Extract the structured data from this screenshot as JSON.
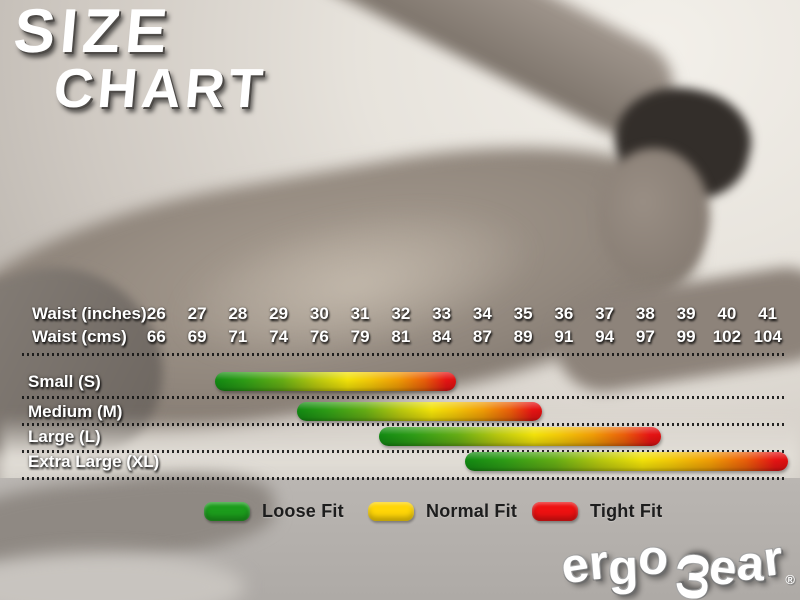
{
  "header": {
    "title_line1": "SIZE",
    "title_line2": "CHART"
  },
  "size_table": {
    "inches_label": "Waist (inches)",
    "cms_label": "Waist (cms)",
    "inches": [
      "26",
      "27",
      "28",
      "29",
      "30",
      "31",
      "32",
      "33",
      "34",
      "35",
      "36",
      "37",
      "38",
      "39",
      "40",
      "41"
    ],
    "cms": [
      "66",
      "69",
      "71",
      "74",
      "76",
      "79",
      "81",
      "84",
      "87",
      "89",
      "91",
      "94",
      "97",
      "99",
      "102",
      "104"
    ]
  },
  "chart_data": {
    "type": "bar",
    "subtype": "horizontal-range-bars",
    "title": "SIZE CHART",
    "xlabel": "Waist (inches)",
    "x_axis": {
      "min": 26,
      "max": 41,
      "tick_labels_inches": [
        26,
        27,
        28,
        29,
        30,
        31,
        32,
        33,
        34,
        35,
        36,
        37,
        38,
        39,
        40,
        41
      ],
      "tick_labels_cms": [
        66,
        69,
        71,
        74,
        76,
        79,
        81,
        84,
        87,
        89,
        91,
        94,
        97,
        99,
        102,
        104
      ]
    },
    "bars": [
      {
        "label": "Small (S)",
        "start_inches": 27.6,
        "end_inches": 33.5
      },
      {
        "label": "Medium (M)",
        "start_inches": 29.6,
        "end_inches": 35.6
      },
      {
        "label": "Large (L)",
        "start_inches": 31.6,
        "end_inches": 38.5
      },
      {
        "label": "Extra Large (XL)",
        "start_inches": 33.7,
        "end_inches": 41.6
      }
    ],
    "bar_gradient": [
      "#128a12",
      "#b7c70f",
      "#f2e209",
      "#f09c06",
      "#e61414"
    ],
    "grid": "dotted-row-separators",
    "legend_position": "bottom",
    "legend": [
      {
        "label": "Loose Fit",
        "color": "#1c9c1c"
      },
      {
        "label": "Normal Fit",
        "color": "#ffd607"
      },
      {
        "label": "Tight Fit",
        "color": "#ee1111"
      }
    ]
  },
  "brand": {
    "logo_full": "ergowear",
    "logo_prefix": "ergo",
    "logo_w": "ω",
    "logo_suffix": "ear",
    "registered": "®"
  }
}
